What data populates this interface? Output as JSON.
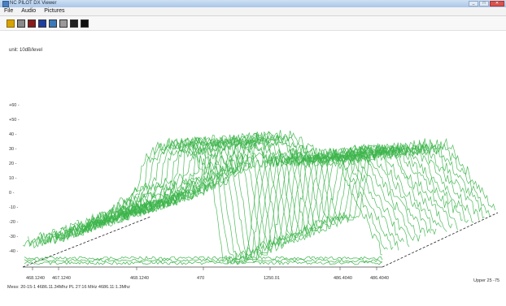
{
  "window": {
    "title": "NC PILOT DX Viewer"
  },
  "menu": [
    "File",
    "Audio",
    "Pictures"
  ],
  "toolbar": {
    "buttons": [
      {
        "icon": "open-folder-icon",
        "color": "#d9a400"
      },
      {
        "icon": "stop-icon",
        "color": "#8a8a8a"
      },
      {
        "icon": "record-icon",
        "color": "#8b1a1a"
      },
      {
        "icon": "spectrum-icon",
        "color": "#1f3fa0"
      },
      {
        "icon": "settings-icon",
        "color": "#3a7ab8"
      },
      {
        "icon": "grid-icon",
        "color": "#9a9a9a"
      },
      {
        "icon": "waterfall-icon",
        "color": "#222222"
      },
      {
        "icon": "export-icon",
        "color": "#111111"
      }
    ]
  },
  "plot": {
    "unit_label": "unit: 10dB/level",
    "y_ticks": [
      "+60 -",
      "+50 -",
      "40 -",
      "30 -",
      "20 -",
      "10 -",
      "0 -",
      "-10 -",
      "-20 -",
      "-30 -",
      "-40 -"
    ],
    "x_ticks": [
      "468.1240",
      "467.1240",
      "468.1240",
      "470",
      "1250.01",
      "486.4040",
      "486.4040"
    ],
    "status_text": "Mess: 20-15-1  4686.11.34Mhz  PL 27:16 MHz  4686.11:1.3Mhz",
    "zoom_label": "Upper 25 -75"
  },
  "chart_data": {
    "type": "area",
    "title": "",
    "ylabel": "unit: 10dB/level",
    "yticks": [
      60,
      50,
      40,
      30,
      20,
      10,
      0,
      -10,
      -20,
      -30,
      -40
    ],
    "ylim": [
      -40,
      60
    ],
    "xticks": [
      "468.1240",
      "467.1240",
      "468.1240",
      "470",
      "1250.01",
      "486.4040",
      "486.4040"
    ],
    "series_color": "#3cb54a",
    "grid": false,
    "legend": "none"
  }
}
